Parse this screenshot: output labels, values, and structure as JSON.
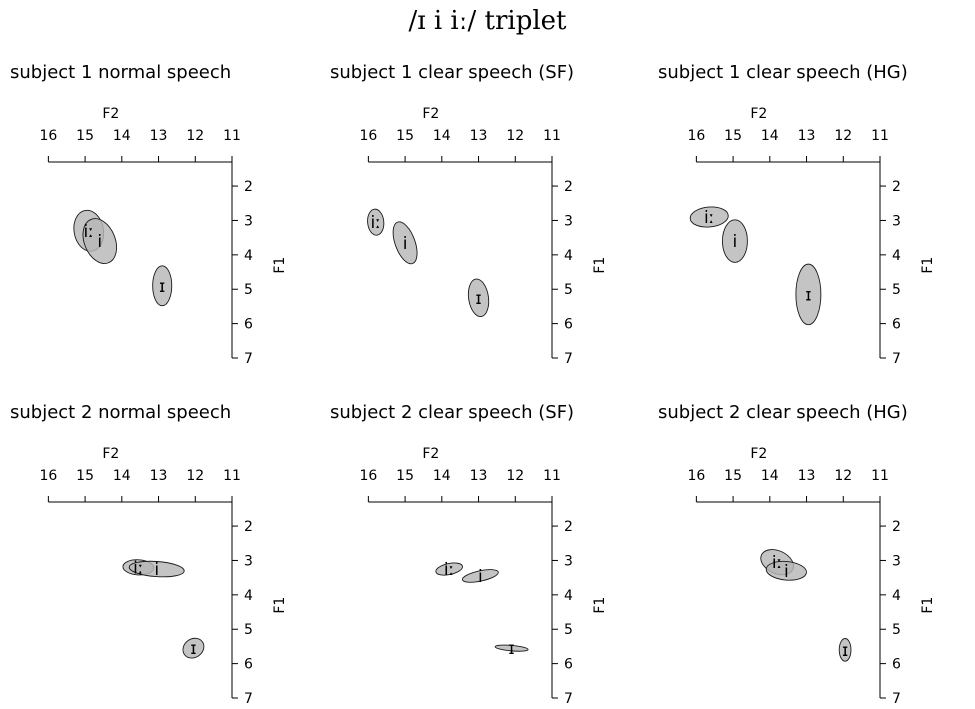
{
  "title": "/ɪ i iː/ triplet",
  "chart_data": [
    {
      "type": "scatter",
      "title": "subject 1 normal speech",
      "xlabel": "F2",
      "ylabel": "F1",
      "xlim": [
        16.5,
        11
      ],
      "ylim": [
        1.3,
        7
      ],
      "xticks": [
        "16",
        "15",
        "14",
        "13",
        "12",
        "11"
      ],
      "yticks": [
        "2",
        "3",
        "4",
        "5",
        "6",
        "7"
      ],
      "vowels": [
        {
          "label": "iː",
          "f2": 14.9,
          "f1": 3.3,
          "rx": 0.4,
          "ry": 0.6,
          "angle": -10
        },
        {
          "label": "i",
          "f2": 14.6,
          "f1": 3.6,
          "rx": 0.42,
          "ry": 0.68,
          "angle": -22
        },
        {
          "label": "ɪ",
          "f2": 12.9,
          "f1": 4.9,
          "rx": 0.26,
          "ry": 0.58,
          "angle": 0
        }
      ]
    },
    {
      "type": "scatter",
      "title": "subject 1 clear speech (SF)",
      "xlabel": "F2",
      "ylabel": "F1",
      "xlim": [
        16.5,
        11
      ],
      "ylim": [
        1.3,
        7
      ],
      "xticks": [
        "16",
        "15",
        "14",
        "13",
        "12",
        "11"
      ],
      "yticks": [
        "2",
        "3",
        "4",
        "5",
        "6",
        "7"
      ],
      "vowels": [
        {
          "label": "iː",
          "f2": 15.8,
          "f1": 3.05,
          "rx": 0.22,
          "ry": 0.38,
          "angle": -5
        },
        {
          "label": "i",
          "f2": 15.0,
          "f1": 3.65,
          "rx": 0.27,
          "ry": 0.64,
          "angle": -20
        },
        {
          "label": "ɪ",
          "f2": 13.0,
          "f1": 5.25,
          "rx": 0.27,
          "ry": 0.55,
          "angle": -8
        }
      ]
    },
    {
      "type": "scatter",
      "title": "subject 1 clear speech (HG)",
      "xlabel": "F2",
      "ylabel": "F1",
      "xlim": [
        16.5,
        11
      ],
      "ylim": [
        1.3,
        7
      ],
      "xticks": [
        "16",
        "15",
        "14",
        "13",
        "12",
        "11"
      ],
      "yticks": [
        "2",
        "3",
        "4",
        "5",
        "6",
        "7"
      ],
      "vowels": [
        {
          "label": "iː",
          "f2": 15.65,
          "f1": 2.9,
          "rx": 0.52,
          "ry": 0.29,
          "angle": -5
        },
        {
          "label": "i",
          "f2": 14.95,
          "f1": 3.6,
          "rx": 0.34,
          "ry": 0.62,
          "angle": 0
        },
        {
          "label": "ɪ",
          "f2": 12.95,
          "f1": 5.15,
          "rx": 0.34,
          "ry": 0.88,
          "angle": 0
        }
      ]
    },
    {
      "type": "scatter",
      "title": "subject 2 normal speech",
      "xlabel": "F2",
      "ylabel": "F1",
      "xlim": [
        16.5,
        11
      ],
      "ylim": [
        1.3,
        7
      ],
      "xticks": [
        "16",
        "15",
        "14",
        "13",
        "12",
        "11"
      ],
      "yticks": [
        "2",
        "3",
        "4",
        "5",
        "6",
        "7"
      ],
      "vowels": [
        {
          "label": "iː",
          "f2": 13.55,
          "f1": 3.2,
          "rx": 0.42,
          "ry": 0.22,
          "angle": 3
        },
        {
          "label": "i",
          "f2": 13.05,
          "f1": 3.25,
          "rx": 0.75,
          "ry": 0.22,
          "angle": 4
        },
        {
          "label": "ɪ",
          "f2": 12.05,
          "f1": 5.55,
          "rx": 0.3,
          "ry": 0.27,
          "angle": -35
        }
      ]
    },
    {
      "type": "scatter",
      "title": "subject 2 clear speech (SF)",
      "xlabel": "F2",
      "ylabel": "F1",
      "xlim": [
        16.5,
        11
      ],
      "ylim": [
        1.3,
        7
      ],
      "xticks": [
        "16",
        "15",
        "14",
        "13",
        "12",
        "11"
      ],
      "yticks": [
        "2",
        "3",
        "4",
        "5",
        "6",
        "7"
      ],
      "vowels": [
        {
          "label": "iː",
          "f2": 13.8,
          "f1": 3.25,
          "rx": 0.37,
          "ry": 0.16,
          "angle": -12
        },
        {
          "label": "i",
          "f2": 12.95,
          "f1": 3.45,
          "rx": 0.5,
          "ry": 0.15,
          "angle": -12
        },
        {
          "label": "ɪ",
          "f2": 12.1,
          "f1": 5.55,
          "rx": 0.45,
          "ry": 0.08,
          "angle": 5
        }
      ]
    },
    {
      "type": "scatter",
      "title": "subject 2 clear speech (HG)",
      "xlabel": "F2",
      "ylabel": "F1",
      "xlim": [
        16.5,
        11
      ],
      "ylim": [
        1.3,
        7
      ],
      "xticks": [
        "16",
        "15",
        "14",
        "13",
        "12",
        "11"
      ],
      "yticks": [
        "2",
        "3",
        "4",
        "5",
        "6",
        "7"
      ],
      "vowels": [
        {
          "label": "iː",
          "f2": 13.8,
          "f1": 3.05,
          "rx": 0.47,
          "ry": 0.33,
          "angle": 25
        },
        {
          "label": "i",
          "f2": 13.55,
          "f1": 3.3,
          "rx": 0.55,
          "ry": 0.27,
          "angle": 5
        },
        {
          "label": "ɪ",
          "f2": 11.95,
          "f1": 5.6,
          "rx": 0.16,
          "ry": 0.33,
          "angle": 0
        }
      ]
    }
  ]
}
